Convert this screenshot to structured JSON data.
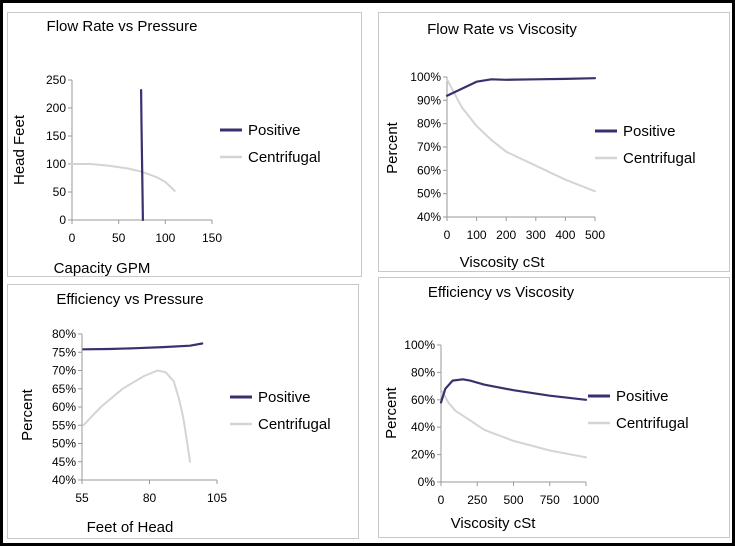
{
  "chart_data": [
    {
      "type": "line",
      "title": "Flow Rate vs Pressure",
      "xlabel": "Capacity GPM",
      "ylabel": "Head Feet",
      "xlim": [
        0,
        150
      ],
      "ylim": [
        0,
        250
      ],
      "xticks": [
        "0",
        "50",
        "100",
        "150"
      ],
      "yticks": [
        "0",
        "50",
        "100",
        "150",
        "200",
        "250"
      ],
      "grid": false,
      "legend_position": "right",
      "series": [
        {
          "name": "Positive",
          "color": "#3d2f6e",
          "x": [
            74,
            74.5,
            75,
            75.5,
            76
          ],
          "y": [
            232,
            170,
            110,
            50,
            0
          ]
        },
        {
          "name": "Centrifugal",
          "color": "#d4d4d4",
          "x": [
            0,
            20,
            40,
            60,
            75,
            90,
            100,
            110
          ],
          "y": [
            100,
            100,
            97,
            92,
            86,
            77,
            68,
            52
          ]
        }
      ]
    },
    {
      "type": "line",
      "title": "Flow Rate vs Viscosity",
      "xlabel": "Viscosity cSt",
      "ylabel": "Percent",
      "xlim": [
        0,
        500
      ],
      "ylim": [
        40,
        100
      ],
      "xticks": [
        "0",
        "100",
        "200",
        "300",
        "400",
        "500"
      ],
      "yticks": [
        "40%",
        "50%",
        "60%",
        "70%",
        "80%",
        "90%",
        "100%"
      ],
      "grid": false,
      "legend_position": "right",
      "series": [
        {
          "name": "Positive",
          "color": "#3d2f6e",
          "x": [
            0,
            50,
            100,
            150,
            200,
            300,
            400,
            500
          ],
          "y": [
            92,
            95,
            98,
            99,
            98.8,
            99,
            99.2,
            99.5
          ]
        },
        {
          "name": "Centrifugal",
          "color": "#d4d4d4",
          "x": [
            0,
            25,
            50,
            100,
            150,
            200,
            300,
            400,
            500
          ],
          "y": [
            99,
            93,
            87,
            79,
            73,
            68,
            62,
            56,
            51
          ]
        }
      ]
    },
    {
      "type": "line",
      "title": "Efficiency vs Pressure",
      "xlabel": "Feet of Head",
      "ylabel": "Percent",
      "xlim": [
        55,
        105
      ],
      "ylim": [
        40,
        80
      ],
      "xticks": [
        "55",
        "80",
        "105"
      ],
      "yticks": [
        "40%",
        "45%",
        "50%",
        "55%",
        "60%",
        "65%",
        "70%",
        "75%",
        "80%"
      ],
      "grid": false,
      "legend_position": "right",
      "series": [
        {
          "name": "Positive",
          "color": "#3d2f6e",
          "x": [
            55.5,
            65,
            75,
            85,
            95,
            99.5
          ],
          "y": [
            75.8,
            75.9,
            76.1,
            76.4,
            76.8,
            77.4
          ]
        },
        {
          "name": "Centrifugal",
          "color": "#d4d4d4",
          "x": [
            55.5,
            62,
            70,
            78,
            83,
            86,
            89,
            91,
            92.5,
            94,
            95
          ],
          "y": [
            55,
            60,
            65,
            68.5,
            70,
            69.5,
            67,
            62,
            57,
            50,
            45
          ]
        }
      ]
    },
    {
      "type": "line",
      "title": "Efficiency vs Viscosity",
      "xlabel": "Viscosity cSt",
      "ylabel": "Percent",
      "xlim": [
        0,
        1000
      ],
      "ylim": [
        0,
        100
      ],
      "xticks": [
        "0",
        "250",
        "500",
        "750",
        "1000"
      ],
      "yticks": [
        "0%",
        "20%",
        "40%",
        "60%",
        "80%",
        "100%"
      ],
      "grid": false,
      "legend_position": "right",
      "series": [
        {
          "name": "Positive",
          "color": "#3d2f6e",
          "x": [
            0,
            30,
            80,
            150,
            200,
            300,
            500,
            750,
            1000
          ],
          "y": [
            58,
            68,
            74,
            75,
            74,
            71,
            67,
            63,
            60
          ]
        },
        {
          "name": "Centrifugal",
          "color": "#d4d4d4",
          "x": [
            0,
            10,
            50,
            100,
            200,
            300,
            500,
            750,
            1000
          ],
          "y": [
            63,
            66,
            58,
            52,
            45,
            38,
            30,
            23,
            18
          ]
        }
      ]
    }
  ]
}
